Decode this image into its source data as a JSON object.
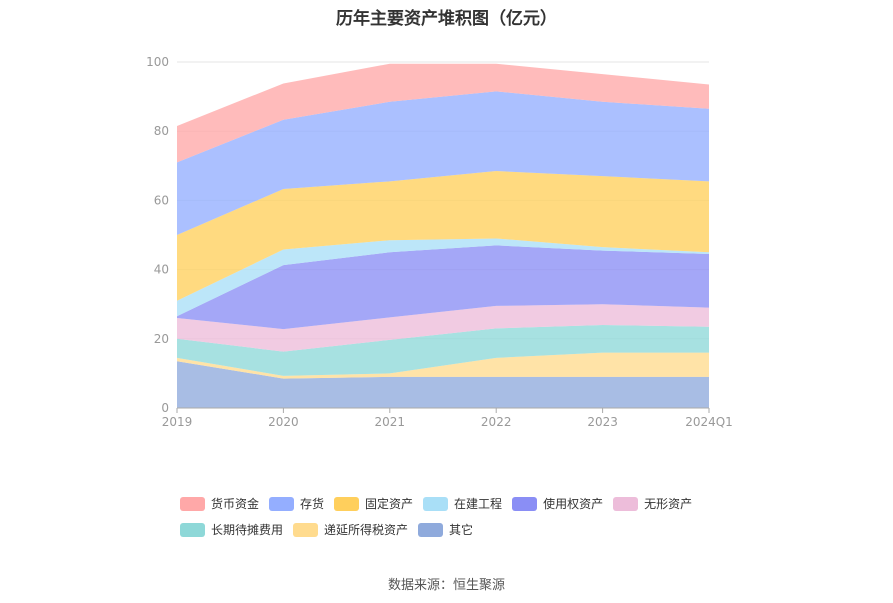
{
  "title": "历年主要资产堆积图（亿元）",
  "source": "数据来源：恒生聚源",
  "chart_data": {
    "type": "area",
    "stacked": true,
    "categories": [
      "2019",
      "2020",
      "2021",
      "2022",
      "2023",
      "2024Q1"
    ],
    "ylim": [
      0,
      100
    ],
    "yticks": [
      0,
      20,
      40,
      60,
      80,
      100
    ],
    "grid": "horizontal",
    "legend_position": "bottom",
    "series": [
      {
        "name": "其它",
        "color": "#8FAADC",
        "values": [
          13.5,
          8.5,
          9.0,
          9.0,
          9.0,
          9.0
        ]
      },
      {
        "name": "递延所得税资产",
        "color": "#FFDB8E",
        "values": [
          1.0,
          0.8,
          1.0,
          5.5,
          7.0,
          7.0
        ]
      },
      {
        "name": "长期待摊费用",
        "color": "#8ED8D8",
        "values": [
          5.5,
          7.0,
          9.7,
          8.5,
          8.0,
          7.5
        ]
      },
      {
        "name": "无形资产",
        "color": "#EDBDDA",
        "values": [
          6.0,
          6.5,
          6.5,
          6.5,
          6.0,
          5.5
        ]
      },
      {
        "name": "使用权资产",
        "color": "#8A8EF5",
        "values": [
          0.5,
          18.5,
          18.8,
          17.5,
          15.5,
          15.5
        ]
      },
      {
        "name": "在建工程",
        "color": "#A9DFF7",
        "values": [
          4.5,
          4.5,
          3.5,
          2.0,
          1.0,
          0.5
        ]
      },
      {
        "name": "固定资产",
        "color": "#FFCF5C",
        "values": [
          19.0,
          17.5,
          17.0,
          19.5,
          20.5,
          20.5
        ]
      },
      {
        "name": "存货",
        "color": "#94AEFF",
        "values": [
          21.0,
          20.0,
          23.0,
          23.0,
          21.5,
          21.0
        ]
      },
      {
        "name": "货币资金",
        "color": "#FFA8A8",
        "values": [
          10.5,
          10.5,
          11.0,
          8.0,
          8.0,
          7.0
        ]
      }
    ]
  },
  "legend_rows": [
    [
      "货币资金",
      "存货",
      "固定资产",
      "在建工程",
      "使用权资产",
      "无形资产"
    ],
    [
      "长期待摊费用",
      "递延所得税资产",
      "其它"
    ]
  ]
}
